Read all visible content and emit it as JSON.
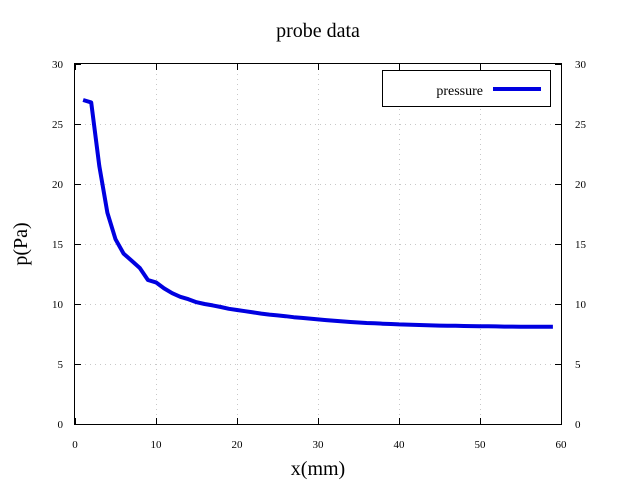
{
  "chart_data": {
    "type": "line",
    "title": "probe data",
    "xlabel": "x(mm)",
    "ylabel": "p(Pa)",
    "xlim": [
      0,
      60
    ],
    "ylim": [
      0,
      30
    ],
    "x_ticks": [
      "0",
      "10",
      "20",
      "30",
      "40",
      "50",
      "60"
    ],
    "y_ticks": [
      "0",
      "5",
      "10",
      "15",
      "20",
      "25",
      "30"
    ],
    "y2_ticks": [
      "0",
      "5",
      "10",
      "15",
      "20",
      "25",
      "30"
    ],
    "grid": true,
    "legend_position": "top-right",
    "series": [
      {
        "name": "pressure",
        "color": "#0000e0",
        "x": [
          1,
          2,
          3,
          4,
          5,
          6,
          7,
          8,
          9,
          10,
          11,
          12,
          13,
          14,
          15,
          16,
          17,
          18,
          19,
          20,
          21,
          22,
          23,
          24,
          25,
          26,
          27,
          28,
          29,
          30,
          31,
          32,
          33,
          34,
          35,
          36,
          37,
          38,
          39,
          40,
          41,
          42,
          43,
          44,
          45,
          46,
          47,
          48,
          49,
          50,
          51,
          52,
          53,
          54,
          55,
          56,
          57,
          58,
          59
        ],
        "y": [
          27.0,
          26.8,
          21.5,
          17.6,
          15.4,
          14.2,
          13.6,
          13.0,
          12.0,
          11.8,
          11.3,
          10.9,
          10.6,
          10.4,
          10.15,
          10.0,
          9.88,
          9.75,
          9.6,
          9.5,
          9.4,
          9.3,
          9.2,
          9.12,
          9.05,
          8.98,
          8.9,
          8.84,
          8.78,
          8.72,
          8.66,
          8.6,
          8.55,
          8.5,
          8.46,
          8.42,
          8.39,
          8.36,
          8.33,
          8.3,
          8.28,
          8.26,
          8.24,
          8.22,
          8.2,
          8.19,
          8.18,
          8.17,
          8.16,
          8.15,
          8.14,
          8.13,
          8.12,
          8.12,
          8.11,
          8.11,
          8.1,
          8.1,
          8.1
        ]
      }
    ]
  }
}
